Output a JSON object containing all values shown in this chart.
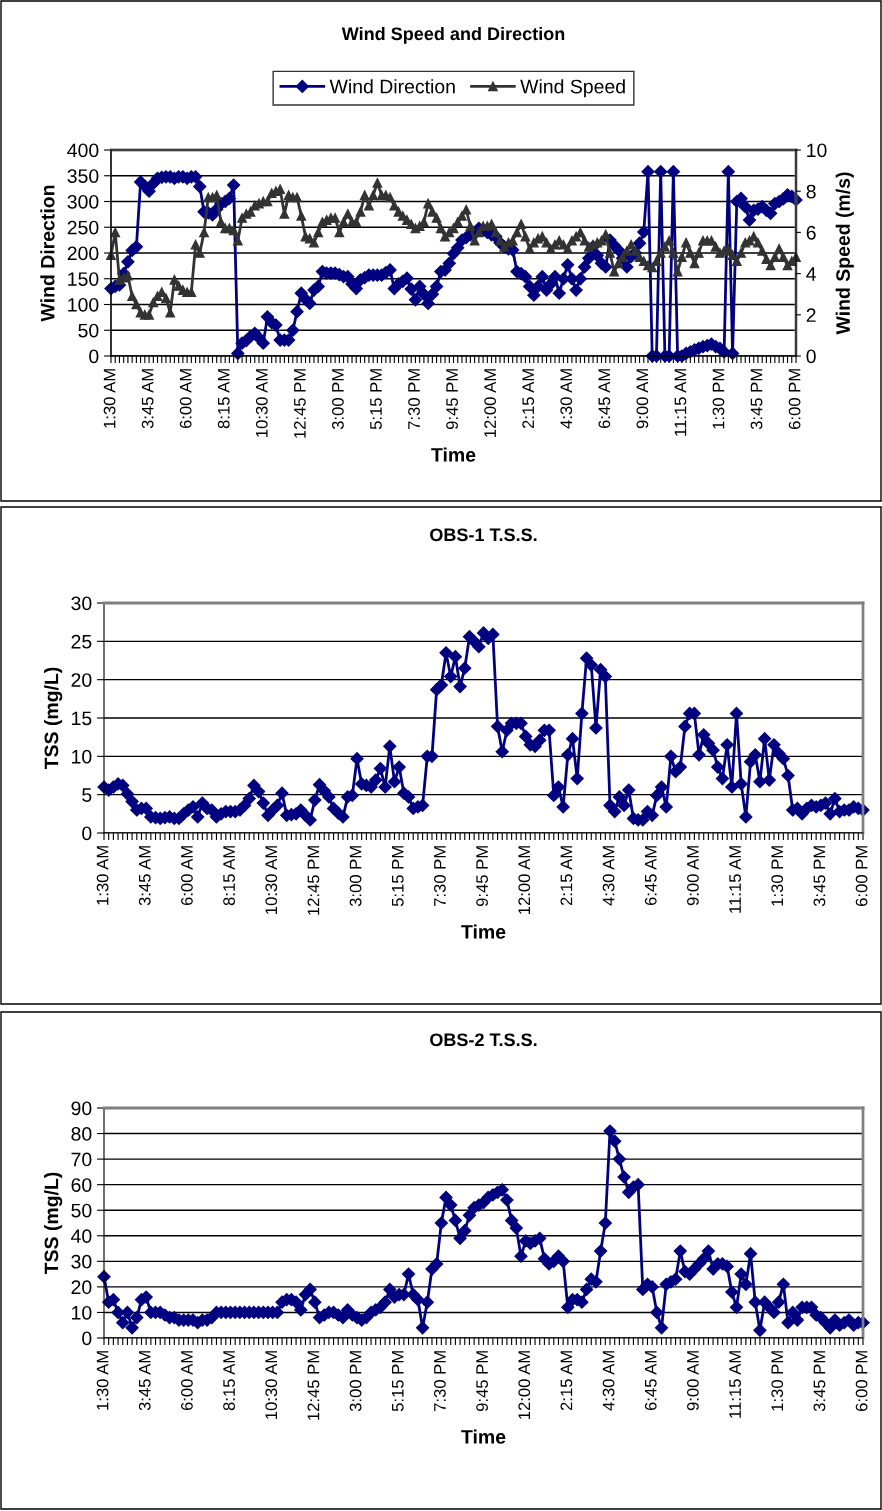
{
  "chart_data": [
    {
      "type": "line",
      "title": "Wind Speed and Direction",
      "xlabel": "Time",
      "ylabel": "Wind Direction",
      "y2label": "Wind Speed (m/s)",
      "categories": [
        "1:30 AM",
        null,
        null,
        null,
        null,
        null,
        null,
        null,
        null,
        "3:45 AM",
        null,
        null,
        null,
        null,
        null,
        null,
        null,
        null,
        "6:00 AM",
        null,
        null,
        null,
        null,
        null,
        null,
        null,
        null,
        "8:15 AM",
        null,
        null,
        null,
        null,
        null,
        null,
        null,
        null,
        "10:30 AM",
        null,
        null,
        null,
        null,
        null,
        null,
        null,
        null,
        "12:45 PM",
        null,
        null,
        null,
        null,
        null,
        null,
        null,
        null,
        "3:00 PM",
        null,
        null,
        null,
        null,
        null,
        null,
        null,
        null,
        "5:15 PM",
        null,
        null,
        null,
        null,
        null,
        null,
        null,
        null,
        "7:30 PM",
        null,
        null,
        null,
        null,
        null,
        null,
        null,
        null,
        "9:45 PM",
        null,
        null,
        null,
        null,
        null,
        null,
        null,
        null,
        "12:00 AM",
        null,
        null,
        null,
        null,
        null,
        null,
        null,
        null,
        "2:15 AM",
        null,
        null,
        null,
        null,
        null,
        null,
        null,
        null,
        "4:30 AM",
        null,
        null,
        null,
        null,
        null,
        null,
        null,
        null,
        "6:45 AM",
        null,
        null,
        null,
        null,
        null,
        null,
        null,
        null,
        "9:00 AM",
        null,
        null,
        null,
        null,
        null,
        null,
        null,
        null,
        "11:15 AM",
        null,
        null,
        null,
        null,
        null,
        null,
        null,
        null,
        "1:30 PM",
        null,
        null,
        null,
        null,
        null,
        null,
        null,
        null,
        "3:45 PM",
        null,
        null,
        null,
        null,
        null,
        null,
        null,
        null,
        "6:00 PM"
      ],
      "ylim": [
        0,
        400
      ],
      "yticks": [
        0,
        50,
        100,
        150,
        200,
        250,
        300,
        350,
        400
      ],
      "y2lim": [
        0,
        10
      ],
      "y2ticks": [
        0,
        2,
        4,
        6,
        8,
        10
      ],
      "grid": "y",
      "legend": "top",
      "series": [
        {
          "name": "Wind Direction",
          "color": "#000080",
          "marker": "diamond",
          "values": [
            131,
            135,
            138,
            160,
            183,
            205,
            212,
            338,
            330,
            320,
            335,
            345,
            347,
            348,
            348,
            345,
            348,
            348,
            345,
            348,
            348,
            329,
            280,
            278,
            274,
            285,
            296,
            300,
            306,
            332,
            5,
            25,
            30,
            38,
            44,
            35,
            25,
            76,
            65,
            60,
            31,
            31,
            31,
            50,
            86,
            122,
            110,
            102,
            128,
            135,
            164,
            161,
            161,
            161,
            158,
            154,
            154,
            140,
            131,
            148,
            152,
            157,
            157,
            157,
            157,
            162,
            167,
            131,
            140,
            145,
            151,
            130,
            109,
            135,
            120,
            102,
            120,
            135,
            164,
            167,
            180,
            199,
            210,
            225,
            230,
            235,
            240,
            248,
            245,
            240,
            235,
            232,
            220,
            212,
            208,
            206,
            164,
            160,
            154,
            135,
            118,
            135,
            154,
            128,
            140,
            154,
            122,
            150,
            177,
            150,
            128,
            150,
            173,
            190,
            212,
            195,
            180,
            173,
            225,
            215,
            206,
            190,
            173,
            193,
            200,
            219,
            241,
            358,
            0,
            0,
            358,
            0,
            0,
            358,
            0,
            0,
            5,
            8,
            12,
            15,
            18,
            20,
            23,
            18,
            15,
            8,
            358,
            5,
            300,
            306,
            290,
            264,
            283,
            285,
            290,
            283,
            277,
            296,
            300,
            305,
            313,
            310,
            303
          ]
        },
        {
          "name": "Wind Speed",
          "color": "#333333",
          "marker": "triangle",
          "axis": "y2",
          "values": [
            4.9,
            6.0,
            3.7,
            3.8,
            3.9,
            2.9,
            2.5,
            2.1,
            2.0,
            2.0,
            2.6,
            2.9,
            3.1,
            2.8,
            2.1,
            3.7,
            3.4,
            3.2,
            3.1,
            3.1,
            5.4,
            5.0,
            6.0,
            7.7,
            7.7,
            7.8,
            6.5,
            6.2,
            6.2,
            6.1,
            5.6,
            6.7,
            6.9,
            7.0,
            7.3,
            7.4,
            7.5,
            7.5,
            7.9,
            8.0,
            8.1,
            6.9,
            7.8,
            7.7,
            7.7,
            6.8,
            5.8,
            5.7,
            5.5,
            6.0,
            6.5,
            6.6,
            6.7,
            6.7,
            6.0,
            6.5,
            6.9,
            6.5,
            6.5,
            7.0,
            7.8,
            7.3,
            7.8,
            8.4,
            7.8,
            7.8,
            7.7,
            7.3,
            7.0,
            6.8,
            6.6,
            6.4,
            6.2,
            6.3,
            6.5,
            7.4,
            7.0,
            6.7,
            6.2,
            5.8,
            6.0,
            6.2,
            6.5,
            6.8,
            7.1,
            6.3,
            5.6,
            6.0,
            6.3,
            6.3,
            6.4,
            6.0,
            5.6,
            5.3,
            5.5,
            5.6,
            6.0,
            6.4,
            5.8,
            5.2,
            5.5,
            5.7,
            5.8,
            5.5,
            5.2,
            5.4,
            5.6,
            5.4,
            5.2,
            5.6,
            5.8,
            6.0,
            5.6,
            5.3,
            5.4,
            5.5,
            5.6,
            5.9,
            5.0,
            4.1,
            4.5,
            4.8,
            5.1,
            5.4,
            5.1,
            4.8,
            4.6,
            4.4,
            4.3,
            4.6,
            5.0,
            5.3,
            5.6,
            5.0,
            4.1,
            4.8,
            5.5,
            5.0,
            4.5,
            5.0,
            5.6,
            5.6,
            5.6,
            5.3,
            5.0,
            5.1,
            5.2,
            4.9,
            4.6,
            5.0,
            5.5,
            5.6,
            5.8,
            5.5,
            5.1,
            4.7,
            4.4,
            4.8,
            5.2,
            4.8,
            4.4,
            4.6,
            4.8
          ]
        }
      ]
    },
    {
      "type": "line",
      "title": "OBS-1 T.S.S.",
      "xlabel": "Time",
      "ylabel": "TSS (mg/L)",
      "categories": [
        "1:30 AM",
        null,
        null,
        null,
        null,
        null,
        null,
        null,
        null,
        "3:45 AM",
        null,
        null,
        null,
        null,
        null,
        null,
        null,
        null,
        "6:00 AM",
        null,
        null,
        null,
        null,
        null,
        null,
        null,
        null,
        "8:15 AM",
        null,
        null,
        null,
        null,
        null,
        null,
        null,
        null,
        "10:30 AM",
        null,
        null,
        null,
        null,
        null,
        null,
        null,
        null,
        "12:45 PM",
        null,
        null,
        null,
        null,
        null,
        null,
        null,
        null,
        "3:00 PM",
        null,
        null,
        null,
        null,
        null,
        null,
        null,
        null,
        "5:15 PM",
        null,
        null,
        null,
        null,
        null,
        null,
        null,
        null,
        "7:30 PM",
        null,
        null,
        null,
        null,
        null,
        null,
        null,
        null,
        "9:45 PM",
        null,
        null,
        null,
        null,
        null,
        null,
        null,
        null,
        "12:00 AM",
        null,
        null,
        null,
        null,
        null,
        null,
        null,
        null,
        "2:15 AM",
        null,
        null,
        null,
        null,
        null,
        null,
        null,
        null,
        "4:30 AM",
        null,
        null,
        null,
        null,
        null,
        null,
        null,
        null,
        "6:45 AM",
        null,
        null,
        null,
        null,
        null,
        null,
        null,
        null,
        "9:00 AM",
        null,
        null,
        null,
        null,
        null,
        null,
        null,
        null,
        "11:15 AM",
        null,
        null,
        null,
        null,
        null,
        null,
        null,
        null,
        "1:30 PM",
        null,
        null,
        null,
        null,
        null,
        null,
        null,
        null,
        "3:45 PM",
        null,
        null,
        null,
        null,
        null,
        null,
        null,
        null,
        "6:00 PM"
      ],
      "ylim": [
        0,
        30
      ],
      "yticks": [
        0,
        5,
        10,
        15,
        20,
        25,
        30
      ],
      "grid": "y",
      "series": [
        {
          "color": "#000080",
          "marker": "diamond",
          "values": [
            6.0,
            5.6,
            6.0,
            6.4,
            6.2,
            5.1,
            4.1,
            3.0,
            3.2,
            3.2,
            2.1,
            2.0,
            1.9,
            2.0,
            2.1,
            1.9,
            1.9,
            2.5,
            3.0,
            3.4,
            2.1,
            3.9,
            3.2,
            3.0,
            2.1,
            2.5,
            2.8,
            2.8,
            2.8,
            3.0,
            3.6,
            4.5,
            6.2,
            5.4,
            3.9,
            2.3,
            3.0,
            3.6,
            5.2,
            2.3,
            2.4,
            2.5,
            3.0,
            2.3,
            1.7,
            4.3,
            6.3,
            5.5,
            4.7,
            3.2,
            2.6,
            2.1,
            4.7,
            4.9,
            9.7,
            6.4,
            6.2,
            6.0,
            6.9,
            8.4,
            6.0,
            11.3,
            6.7,
            8.6,
            5.2,
            4.7,
            3.2,
            3.4,
            3.6,
            10.0,
            10.0,
            18.7,
            19.3,
            23.5,
            20.4,
            23.0,
            19.1,
            21.5,
            25.6,
            25.0,
            24.3,
            26.1,
            25.4,
            25.9,
            13.9,
            10.6,
            13.4,
            14.3,
            14.3,
            14.3,
            12.6,
            11.5,
            11.3,
            12.1,
            13.4,
            13.4,
            4.9,
            6.0,
            3.4,
            10.2,
            12.3,
            7.1,
            15.6,
            22.8,
            21.9,
            13.7,
            21.3,
            20.4,
            3.6,
            2.8,
            4.7,
            3.6,
            5.6,
            1.9,
            1.7,
            1.7,
            2.8,
            2.3,
            4.9,
            6.0,
            3.4,
            10.0,
            8.0,
            8.6,
            13.9,
            15.6,
            15.6,
            10.2,
            12.8,
            11.7,
            10.8,
            8.6,
            7.1,
            11.5,
            6.0,
            15.6,
            6.4,
            2.1,
            9.3,
            10.2,
            6.7,
            12.3,
            6.9,
            11.5,
            10.4,
            9.7,
            7.5,
            3.0,
            3.2,
            2.5,
            3.2,
            3.6,
            3.4,
            3.6,
            3.9,
            2.5,
            4.5,
            2.8,
            3.0,
            3.0,
            3.4,
            3.2,
            3.0
          ]
        }
      ]
    },
    {
      "type": "line",
      "title": "OBS-2 T.S.S.",
      "xlabel": "Time",
      "ylabel": "TSS (mg/L)",
      "categories": [
        "1:30 AM",
        null,
        null,
        null,
        null,
        null,
        null,
        null,
        null,
        "3:45 AM",
        null,
        null,
        null,
        null,
        null,
        null,
        null,
        null,
        "6:00 AM",
        null,
        null,
        null,
        null,
        null,
        null,
        null,
        null,
        "8:15 AM",
        null,
        null,
        null,
        null,
        null,
        null,
        null,
        null,
        "10:30 AM",
        null,
        null,
        null,
        null,
        null,
        null,
        null,
        null,
        "12:45 PM",
        null,
        null,
        null,
        null,
        null,
        null,
        null,
        null,
        "3:00 PM",
        null,
        null,
        null,
        null,
        null,
        null,
        null,
        null,
        "5:15 PM",
        null,
        null,
        null,
        null,
        null,
        null,
        null,
        null,
        "7:30 PM",
        null,
        null,
        null,
        null,
        null,
        null,
        null,
        null,
        "9:45 PM",
        null,
        null,
        null,
        null,
        null,
        null,
        null,
        null,
        "12:00 AM",
        null,
        null,
        null,
        null,
        null,
        null,
        null,
        null,
        "2:15 AM",
        null,
        null,
        null,
        null,
        null,
        null,
        null,
        null,
        "4:30 AM",
        null,
        null,
        null,
        null,
        null,
        null,
        null,
        null,
        "6:45 AM",
        null,
        null,
        null,
        null,
        null,
        null,
        null,
        null,
        "9:00 AM",
        null,
        null,
        null,
        null,
        null,
        null,
        null,
        null,
        "11:15 AM",
        null,
        null,
        null,
        null,
        null,
        null,
        null,
        null,
        "1:30 PM",
        null,
        null,
        null,
        null,
        null,
        null,
        null,
        null,
        "3:45 PM",
        null,
        null,
        null,
        null,
        null,
        null,
        null,
        null,
        "6:00 PM"
      ],
      "ylim": [
        0,
        90
      ],
      "yticks": [
        0,
        10,
        20,
        30,
        40,
        50,
        60,
        70,
        80,
        90
      ],
      "grid": "y",
      "series": [
        {
          "color": "#000080",
          "marker": "diamond",
          "values": [
            24,
            14,
            15,
            10,
            6,
            10,
            4,
            8,
            15,
            16,
            10,
            10,
            10,
            9,
            8,
            8,
            7,
            7,
            7,
            7,
            6,
            7,
            7,
            8,
            10,
            10,
            10,
            10,
            10,
            10,
            10,
            10,
            10,
            10,
            10,
            10,
            10,
            10,
            14,
            15,
            15,
            14,
            11,
            17,
            19,
            14,
            8,
            9,
            10,
            10,
            9,
            8,
            11,
            9,
            8,
            7,
            8,
            10,
            11,
            12,
            14,
            19,
            16,
            17,
            17,
            25,
            17,
            15,
            4,
            14,
            27,
            29,
            45,
            55,
            52,
            46,
            39,
            42,
            48,
            51,
            52,
            53,
            55,
            56,
            57,
            58,
            54,
            46,
            43,
            32,
            38,
            37,
            38,
            39,
            31,
            29,
            30,
            32,
            30,
            12,
            15,
            15,
            14,
            19,
            23,
            22,
            34,
            45,
            81,
            77,
            70,
            63,
            57,
            59,
            60,
            19,
            21,
            20,
            10,
            4,
            21,
            22,
            23,
            34,
            26,
            25,
            27,
            29,
            31,
            34,
            27,
            29,
            29,
            28,
            18,
            12,
            25,
            21,
            33,
            14,
            3,
            14,
            12,
            10,
            14,
            21,
            6,
            10,
            7,
            12,
            12,
            12,
            9,
            8,
            6,
            4,
            7,
            5,
            6,
            7,
            5,
            6,
            6
          ]
        }
      ]
    }
  ]
}
